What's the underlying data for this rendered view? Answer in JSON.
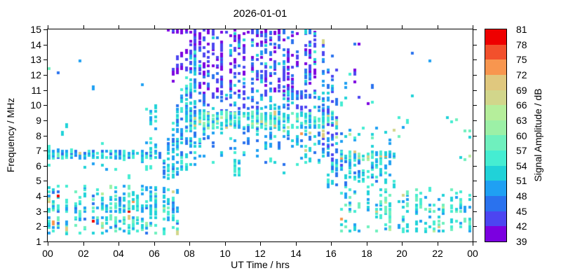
{
  "title": "2026-01-01",
  "axes": {
    "xlabel": "UT Time / hrs",
    "ylabel": "Frequency / MHz",
    "x_tick_labels": [
      "00",
      "02",
      "04",
      "06",
      "08",
      "10",
      "12",
      "14",
      "16",
      "18",
      "20",
      "22",
      "00"
    ],
    "x_tick_hours": [
      0,
      2,
      4,
      6,
      8,
      10,
      12,
      14,
      16,
      18,
      20,
      22,
      24
    ],
    "y_tick_labels": [
      "1",
      "2",
      "3",
      "4",
      "5",
      "6",
      "7",
      "8",
      "9",
      "10",
      "11",
      "12",
      "13",
      "14",
      "15"
    ],
    "y_tick_values": [
      1,
      2,
      3,
      4,
      5,
      6,
      7,
      8,
      9,
      10,
      11,
      12,
      13,
      14,
      15
    ],
    "x_range_hours": [
      0,
      24
    ],
    "y_range_mhz": [
      1,
      15
    ]
  },
  "colorbar": {
    "label": "Signal Amplitude / dB",
    "min": 39,
    "max": 81,
    "step": 3,
    "tick_values": [
      39,
      42,
      45,
      48,
      51,
      54,
      57,
      60,
      63,
      66,
      69,
      72,
      75,
      78,
      81
    ],
    "colors_low_to_high": [
      "#7B00E0",
      "#4C45F1",
      "#2A72EE",
      "#1FA0F3",
      "#20D2D8",
      "#45EDD2",
      "#6FF0BE",
      "#9CF0A6",
      "#B5EE9B",
      "#D2D68B",
      "#E0C87E",
      "#F8964F",
      "#F2502C",
      "#EE0000"
    ]
  },
  "chart_data": {
    "type": "scatter",
    "title": "2026-01-01",
    "xlabel": "UT Time / hrs",
    "ylabel": "Frequency / MHz",
    "xlim": [
      0,
      24
    ],
    "ylim": [
      1,
      15
    ],
    "grid": false,
    "colorbar_label": "Signal Amplitude / dB",
    "amplitude_db_range": [
      39,
      81
    ],
    "generator": {
      "seed": 42,
      "t_step": 0.25,
      "f_step": 0.13,
      "dot_w": 4,
      "dot_h": 4,
      "tall_dot_h": 7,
      "tall_dot_p": 0.22,
      "regions": [
        {
          "name": "night-6.7MHz-band",
          "t": [
            0,
            6.45
          ],
          "f_lo": [
            6.55,
            6.55
          ],
          "f_hi": [
            6.95,
            6.95
          ],
          "p": 0.8,
          "col_gap": 0.06,
          "amp": [
            45,
            57
          ],
          "warm_p": 0.02,
          "warm": [
            63,
            72
          ]
        },
        {
          "name": "night-6.7MHz-halo",
          "t": [
            0,
            6.3
          ],
          "f_lo": [
            5.5,
            5.5
          ],
          "f_hi": [
            6.5,
            6.5
          ],
          "p": 0.035,
          "amp": [
            48,
            58
          ]
        },
        {
          "name": "morning-low-scatter",
          "t": [
            0,
            7.3
          ],
          "f_lo": [
            1.55,
            1.55
          ],
          "f_hi": [
            4.7,
            4.7
          ],
          "p": 0.38,
          "col_gap": 0.2,
          "amp": [
            47,
            59
          ],
          "warm_p": 0.05,
          "warm": [
            62,
            74
          ],
          "red_p": 0.005,
          "bands": [
            [
              3.15,
              0.28,
              1.6
            ],
            [
              2.5,
              0.13,
              1.25
            ],
            [
              2.05,
              0.2,
              1.2
            ],
            [
              2.78,
              0.08,
              0.25
            ],
            [
              4.5,
              0.18,
              0.6
            ]
          ]
        },
        {
          "name": "presunrise-column",
          "t": [
            5.45,
            6.25
          ],
          "f_lo": [
            5.7,
            5.7
          ],
          "f_hi": [
            9.9,
            9.9
          ],
          "p": 0.15,
          "col_gap": 0.15,
          "amp": [
            48,
            57
          ]
        },
        {
          "name": "sunrise-rise",
          "t": [
            6.3,
            8.3
          ],
          "f_lo": [
            4.9,
            6.0
          ],
          "f_hi": [
            5.8,
            14.6
          ],
          "p": 0.5,
          "col_gap": 0.04,
          "amp": [
            45,
            56
          ],
          "warm_p": 0.02,
          "warm": [
            60,
            66
          ]
        },
        {
          "name": "sunrise-top-purple",
          "t": [
            6.9,
            8.3
          ],
          "f_lo": [
            11.5,
            12.5
          ],
          "f_hi": [
            12.6,
            15.0
          ],
          "p": 0.3,
          "amp": [
            39,
            45
          ]
        },
        {
          "name": "top-row-15MHz-morning",
          "t": [
            6.6,
            8.35
          ],
          "f_lo": [
            14.82,
            14.82
          ],
          "f_hi": [
            15.0,
            15.0
          ],
          "p": 0.75,
          "amp": [
            39,
            44
          ]
        },
        {
          "name": "top-row-15MHz-day",
          "t": [
            8.4,
            15.25
          ],
          "f_lo": [
            14.82,
            14.82
          ],
          "f_hi": [
            15.0,
            15.0
          ],
          "p": 0.3,
          "col_gap": 0.25,
          "amp": [
            39,
            44
          ]
        },
        {
          "name": "day-top-purple",
          "t": [
            8.35,
            15.45
          ],
          "f_lo": [
            10.8,
            10.8
          ],
          "f_hi": [
            14.9,
            14.9
          ],
          "p": 0.4,
          "col_gap": 0.1,
          "amp": [
            39,
            47
          ],
          "warm_p": 0.14,
          "warm": [
            50,
            55
          ]
        },
        {
          "name": "day-upper-mid",
          "t": [
            8.0,
            15.7
          ],
          "f_lo": [
            9.5,
            9.5
          ],
          "f_hi": [
            10.8,
            10.8
          ],
          "p": 0.3,
          "amp": [
            42,
            53
          ]
        },
        {
          "name": "day-9MHz-band",
          "t": [
            7.95,
            16.3
          ],
          "f_lo": [
            8.55,
            8.55
          ],
          "f_hi": [
            9.5,
            9.5
          ],
          "p": 0.7,
          "amp": [
            48,
            59
          ],
          "warm_p": 0.09,
          "warm": [
            60,
            70
          ]
        },
        {
          "name": "day-low-scatter",
          "t": [
            7.8,
            15.9
          ],
          "f_lo": [
            6.1,
            6.1
          ],
          "f_hi": [
            8.55,
            8.55
          ],
          "p": 0.17,
          "col_gap": 0.1,
          "amp": [
            45,
            56
          ],
          "warm_p": 0.03,
          "warm": [
            60,
            68
          ]
        },
        {
          "name": "midday-column-5.5MHz",
          "t": [
            10.5,
            10.75
          ],
          "f_lo": [
            5.4,
            5.4
          ],
          "f_hi": [
            6.4,
            6.4
          ],
          "p": 0.8,
          "amp": [
            51,
            56
          ]
        },
        {
          "name": "afternoon-descent",
          "t": [
            15.45,
            16.7
          ],
          "f_lo": [
            6.3,
            4.9
          ],
          "f_hi": [
            14.8,
            8.3
          ],
          "p": 0.28,
          "amp": [
            42,
            53
          ],
          "warm_p": 0.04,
          "warm": [
            60,
            68
          ]
        },
        {
          "name": "afternoon-top-strays",
          "t": [
            15.8,
            18.3
          ],
          "f_lo": [
            9.6,
            9.6
          ],
          "f_hi": [
            14.5,
            14.5
          ],
          "p": 0.035,
          "amp": [
            39,
            50
          ]
        },
        {
          "name": "evening-6.7MHz-band",
          "t": [
            16.1,
            19.6
          ],
          "f_lo": [
            6.4,
            6.4
          ],
          "f_hi": [
            7.02,
            7.02
          ],
          "p": 0.75,
          "col_gap": 0.05,
          "amp": [
            48,
            62
          ],
          "warm_p": 0.15,
          "warm": [
            63,
            75
          ],
          "red_p": 0.02
        },
        {
          "name": "evening-8MHz-scatter",
          "t": [
            16.3,
            19.8
          ],
          "f_lo": [
            7.3,
            7.3
          ],
          "f_hi": [
            8.55,
            8.55
          ],
          "p": 0.13,
          "amp": [
            48,
            58
          ],
          "warm_p": 0.12,
          "warm": [
            63,
            72
          ]
        },
        {
          "name": "evening-mid-scatter",
          "t": [
            15.75,
            19.7
          ],
          "f_lo": [
            4.6,
            4.6
          ],
          "f_hi": [
            6.35,
            6.35
          ],
          "p": 0.3,
          "col_gap": 0.18,
          "amp": [
            46,
            57
          ]
        },
        {
          "name": "evening-low-scatter",
          "t": [
            16.2,
            23.95
          ],
          "f_lo": [
            1.7,
            1.7
          ],
          "f_hi": [
            4.5,
            4.5
          ],
          "p": 0.27,
          "col_gap": 0.28,
          "amp": [
            48,
            60
          ],
          "warm_p": 0.05,
          "warm": [
            62,
            74
          ],
          "red_p": 0.004,
          "bands": [
            [
              3.15,
              0.28,
              1.6
            ],
            [
              2.35,
              0.18,
              1.05
            ],
            [
              2.78,
              0.07,
              0.3
            ]
          ]
        },
        {
          "name": "night-9MHz-dots",
          "t": [
            19.3,
            23.3
          ],
          "f_lo": [
            8.9,
            8.9
          ],
          "f_hi": [
            9.25,
            9.25
          ],
          "p": 0.14,
          "col_gap": 0.35,
          "amp": [
            51,
            58
          ]
        },
        {
          "name": "night-6.7MHz-sparse",
          "t": [
            19.7,
            23.95
          ],
          "f_lo": [
            6.4,
            6.4
          ],
          "f_hi": [
            6.95,
            6.95
          ],
          "p": 0.13,
          "col_gap": 0.3,
          "amp": [
            52,
            62
          ],
          "warm_p": 0.1,
          "warm": [
            63,
            70
          ]
        },
        {
          "name": "right-edge-8MHz",
          "t": [
            23.2,
            23.95
          ],
          "f_lo": [
            7.9,
            7.9
          ],
          "f_hi": [
            8.35,
            8.35
          ],
          "p": 0.3,
          "amp": [
            50,
            60
          ],
          "warm_p": 0.1,
          "warm": [
            70,
            74
          ]
        },
        {
          "name": "sporadic-singles",
          "t": [
            0,
            23.95
          ],
          "f_lo": [
            5.0,
            5.0
          ],
          "f_hi": [
            13.5,
            13.5
          ],
          "p": 0.005,
          "amp": [
            46,
            58
          ],
          "warm_p": 0.12,
          "warm": [
            63,
            74
          ]
        }
      ]
    }
  }
}
